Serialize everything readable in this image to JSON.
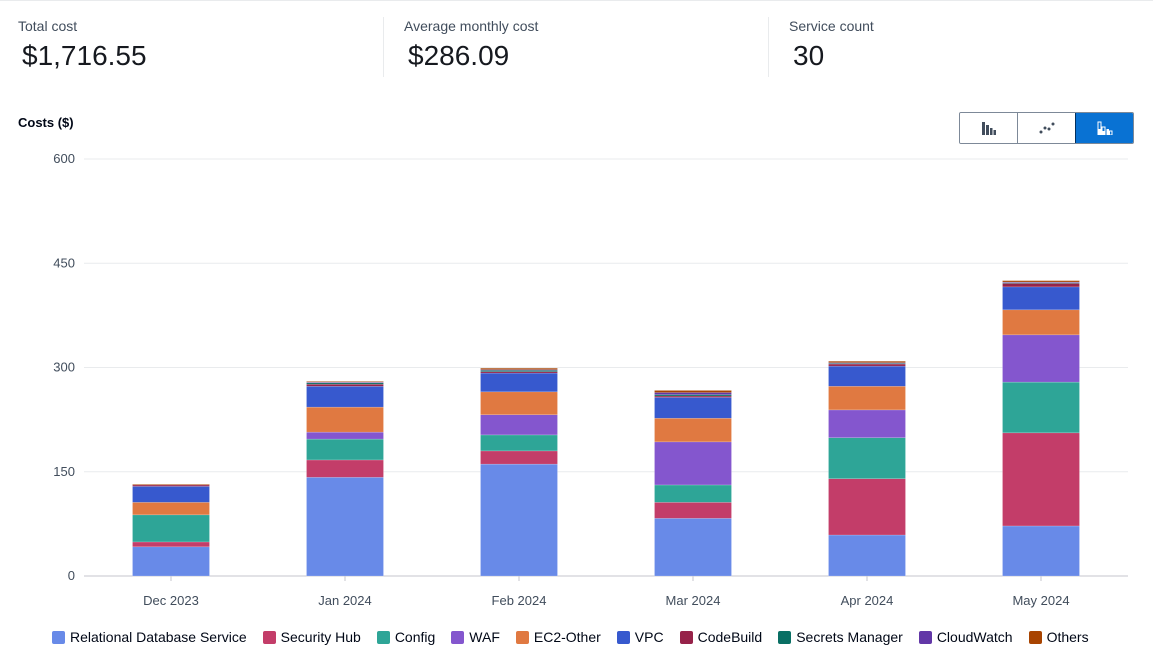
{
  "summary": {
    "total_cost": {
      "label": "Total cost",
      "value": "$1,716.55"
    },
    "avg_monthly_cost": {
      "label": "Average monthly cost",
      "value": "$286.09"
    },
    "service_count": {
      "label": "Service count",
      "value": "30"
    }
  },
  "chart_toggle": {
    "options": [
      {
        "name": "bar-chart",
        "active": false
      },
      {
        "name": "line-chart",
        "active": false
      },
      {
        "name": "stacked-bar-chart",
        "active": true
      }
    ]
  },
  "chart_data": {
    "type": "bar",
    "stacked": true,
    "ylabel": "Costs ($)",
    "xlabel": "",
    "ylim": [
      0,
      600
    ],
    "yticks": [
      0,
      150,
      300,
      450,
      600
    ],
    "grid": true,
    "legend_position": "bottom",
    "categories": [
      "Dec 2023",
      "Jan 2024",
      "Feb 2024",
      "Mar 2024",
      "Apr 2024",
      "May 2024"
    ],
    "series": [
      {
        "name": "Relational Database Service",
        "color": "#688ae8",
        "values": [
          42,
          142,
          161,
          83,
          59,
          72
        ]
      },
      {
        "name": "Security Hub",
        "color": "#c33d69",
        "values": [
          7,
          25,
          19,
          23,
          81,
          134
        ]
      },
      {
        "name": "Config",
        "color": "#2ea597",
        "values": [
          39,
          30,
          23,
          25,
          59,
          73
        ]
      },
      {
        "name": "WAF",
        "color": "#8456ce",
        "values": [
          0,
          10,
          29,
          62,
          40,
          68
        ]
      },
      {
        "name": "EC2-Other",
        "color": "#e07941",
        "values": [
          18,
          36,
          33,
          34,
          34,
          36
        ]
      },
      {
        "name": "VPC",
        "color": "#3759ce",
        "values": [
          23,
          30,
          27,
          30,
          29,
          33
        ]
      },
      {
        "name": "CodeBuild",
        "color": "#962249",
        "values": [
          2,
          3,
          2,
          2,
          3,
          5
        ]
      },
      {
        "name": "Secrets Manager",
        "color": "#096f64",
        "values": [
          0,
          2,
          2,
          2,
          1,
          1
        ]
      },
      {
        "name": "CloudWatch",
        "color": "#6237a7",
        "values": [
          0,
          1,
          1,
          3,
          1,
          1
        ]
      },
      {
        "name": "Others",
        "color": "#a84401",
        "values": [
          1,
          1,
          2,
          3,
          2,
          2
        ]
      }
    ]
  }
}
